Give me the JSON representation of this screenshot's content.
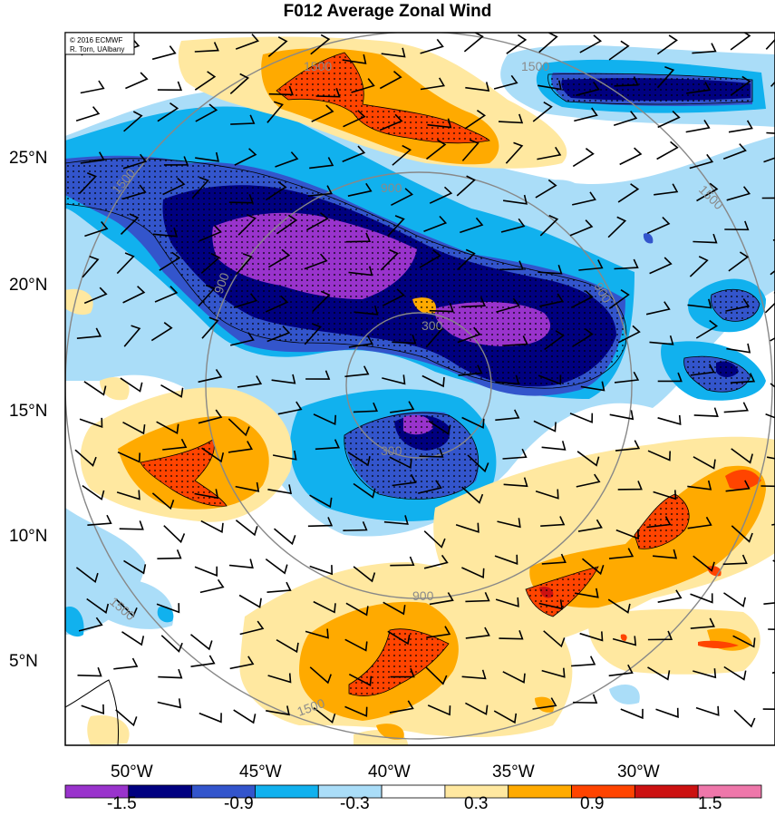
{
  "title": "F012 Average Zonal Wind",
  "credit": {
    "line1": "© 2016 ECMWF",
    "line2": "R. Torn, UAlbany"
  },
  "lat_ticks": [
    "25°N",
    "20°N",
    "15°N",
    "10°N",
    "5°N"
  ],
  "lon_ticks": [
    "50°W",
    "45°W",
    "40°W",
    "35°W",
    "30°W"
  ],
  "contour_labels": [
    "1500",
    "1500",
    "1500",
    "1500",
    "1500",
    "1500",
    "900",
    "900",
    "900",
    "900",
    "300",
    "300"
  ],
  "colorbar": {
    "colors": [
      "#9933cc",
      "#000080",
      "#3355cc",
      "#11b1ee",
      "#aaddf8",
      "#ffffff",
      "#ffe8a0",
      "#ffaa00",
      "#ff4400",
      "#cc1111",
      "#ee77aa"
    ],
    "labels": [
      "-1.5",
      "-0.9",
      "-0.3",
      "0.3",
      "0.9",
      "1.5"
    ]
  },
  "legend_colors": {
    "purple": "#9933cc",
    "navy": "#000080",
    "blue": "#3355cc",
    "cyan": "#11b1ee",
    "lightblue": "#aaddf8",
    "yellow": "#ffe8a0",
    "orange": "#ffaa00",
    "red": "#ff4400"
  }
}
